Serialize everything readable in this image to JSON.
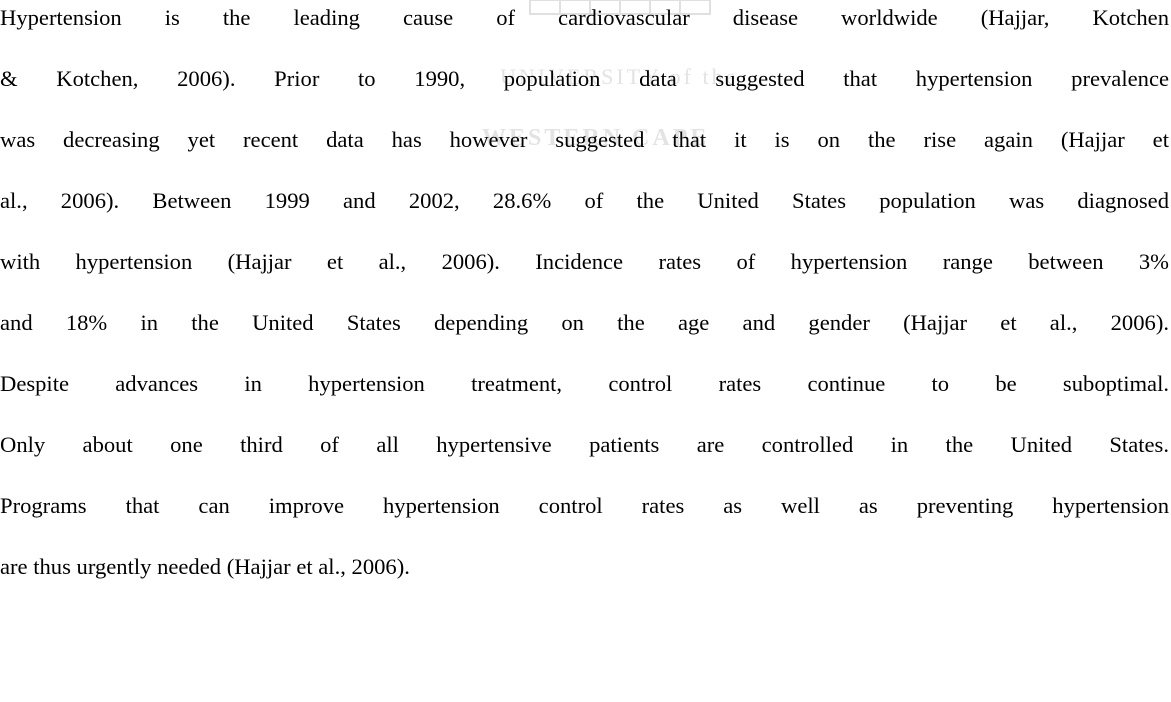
{
  "watermark": {
    "lines": [
      "UNIVERSITY of the",
      "WESTERN CAPE"
    ]
  },
  "paragraph": {
    "lines": [
      "Hypertension is the leading cause of cardiovascular disease worldwide (Hajjar, Kotchen",
      "& Kotchen, 2006). Prior to 1990, population data suggested that hypertension prevalence",
      "was decreasing yet recent data has however suggested that it is on the rise again (Hajjar et",
      "al., 2006). Between 1999 and 2002, 28.6% of the United States population was diagnosed",
      "with hypertension (Hajjar et al., 2006). Incidence rates of hypertension range between 3%",
      "and 18% in the United States depending on the age and gender (Hajjar et al., 2006).",
      "Despite advances in hypertension treatment, control rates continue to be suboptimal.",
      "Only about one third of all hypertensive patients are controlled in the United States.",
      "Programs that can improve hypertension control rates as well as preventing hypertension",
      "are thus urgently needed (Hajjar et al., 2006)."
    ]
  }
}
